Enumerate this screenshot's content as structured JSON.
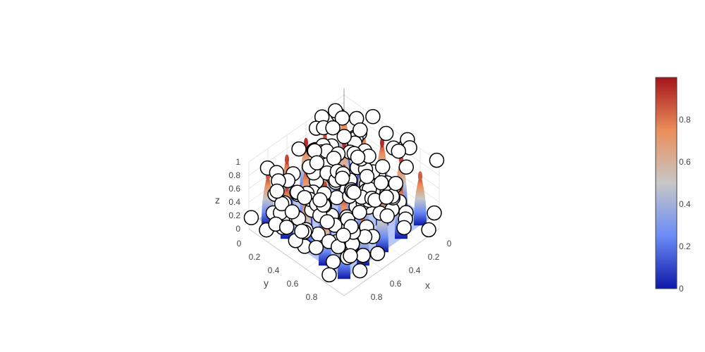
{
  "chart_data": {
    "type": "surface",
    "title": "",
    "axes": {
      "x": {
        "title": "x",
        "range": [
          0,
          1
        ],
        "ticks": [
          "0",
          "0.2",
          "0.4",
          "0.6",
          "0.8"
        ]
      },
      "y": {
        "title": "y",
        "range": [
          0,
          1
        ],
        "ticks": [
          "0",
          "0.2",
          "0.4",
          "0.6",
          "0.8"
        ]
      },
      "z": {
        "title": "z",
        "range": [
          0,
          1
        ],
        "ticks": [
          "0",
          "0.2",
          "0.4",
          "0.6",
          "0.8",
          "1"
        ]
      }
    },
    "grid": true,
    "colorbar": {
      "min": 0,
      "max": 1,
      "ticks": [
        "0",
        "0.2",
        "0.4",
        "0.6",
        "0.8"
      ],
      "tick_values": [
        0,
        0.2,
        0.4,
        0.6,
        0.8
      ],
      "colors": [
        "#0d18a8",
        "#6b8cf7",
        "#c7c7c7",
        "#eb8e5a",
        "#a5141b"
      ],
      "placement": "right"
    },
    "surface": {
      "description_peaks_grid": 5,
      "peaks": [
        [
          0.1,
          0.1,
          0.95
        ],
        [
          0.3,
          0.1,
          0.9
        ],
        [
          0.5,
          0.1,
          0.95
        ],
        [
          0.7,
          0.1,
          0.9
        ],
        [
          0.9,
          0.1,
          0.85
        ],
        [
          0.1,
          0.3,
          0.9
        ],
        [
          0.3,
          0.3,
          0.95
        ],
        [
          0.5,
          0.3,
          0.9
        ],
        [
          0.7,
          0.3,
          0.95
        ],
        [
          0.9,
          0.3,
          0.9
        ],
        [
          0.1,
          0.5,
          0.95
        ],
        [
          0.3,
          0.5,
          0.9
        ],
        [
          0.5,
          0.5,
          0.95
        ],
        [
          0.7,
          0.5,
          0.9
        ],
        [
          0.9,
          0.5,
          0.95
        ],
        [
          0.1,
          0.7,
          0.9
        ],
        [
          0.3,
          0.7,
          0.95
        ],
        [
          0.5,
          0.7,
          0.9
        ],
        [
          0.7,
          0.7,
          0.95
        ],
        [
          0.9,
          0.7,
          0.9
        ],
        [
          0.1,
          0.9,
          0.85
        ],
        [
          0.3,
          0.9,
          0.9
        ],
        [
          0.5,
          0.9,
          0.95
        ],
        [
          0.7,
          0.9,
          0.9
        ],
        [
          0.9,
          0.9,
          0.95
        ]
      ]
    },
    "markers": {
      "type": "scatter3d",
      "symbol": "circle",
      "fill": "#ffffff",
      "stroke": "#000000"
    }
  }
}
